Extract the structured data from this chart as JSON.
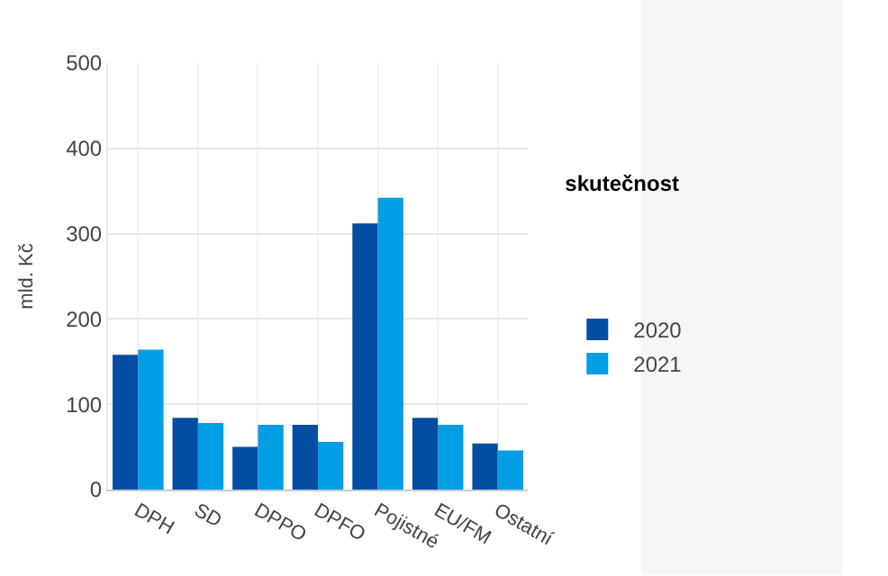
{
  "chart_data": {
    "type": "bar",
    "ylabel": "mld. Kč",
    "legend_title": "skutečnost",
    "categories": [
      "DPH",
      "SD",
      "DPPO",
      "DPFO",
      "Pojistné",
      "EU/FM",
      "Ostatní"
    ],
    "series": [
      {
        "name": "2020",
        "color": "#034ea2",
        "values": [
          158,
          84,
          50,
          76,
          312,
          84,
          54
        ]
      },
      {
        "name": "2021",
        "color": "#009ee5",
        "values": [
          164,
          78,
          76,
          56,
          342,
          76,
          46
        ]
      }
    ],
    "ylim": [
      0,
      500
    ],
    "yticks": [
      0,
      100,
      200,
      300,
      400,
      500
    ],
    "grid": true,
    "legend": "right"
  }
}
